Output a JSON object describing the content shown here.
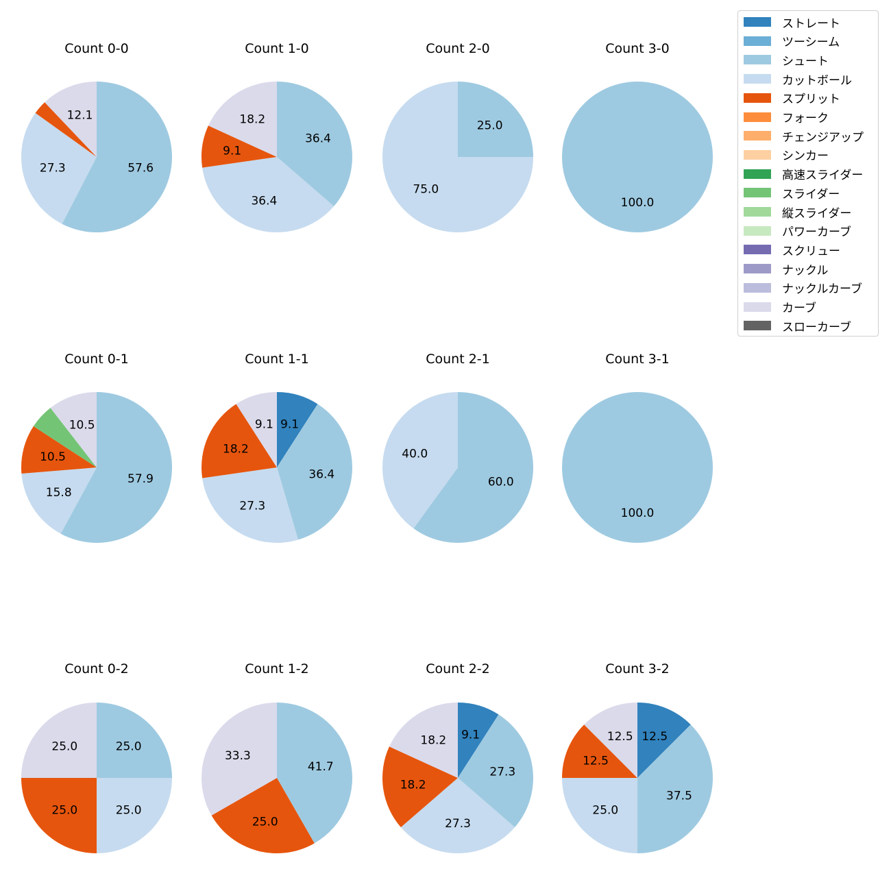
{
  "chart_data": {
    "type": "pie",
    "legend_placement": "top-right",
    "pitch_types": [
      {
        "name": "ストレート",
        "color": "#3182bd"
      },
      {
        "name": "ツーシーム",
        "color": "#6baed6"
      },
      {
        "name": "シュート",
        "color": "#9ecae1"
      },
      {
        "name": "カットボール",
        "color": "#c6dbef"
      },
      {
        "name": "スプリット",
        "color": "#e6550d"
      },
      {
        "name": "フォーク",
        "color": "#fd8d3c"
      },
      {
        "name": "チェンジアップ",
        "color": "#fdae6b"
      },
      {
        "name": "シンカー",
        "color": "#fdd0a2"
      },
      {
        "name": "高速スライダー",
        "color": "#31a354"
      },
      {
        "name": "スライダー",
        "color": "#74c476"
      },
      {
        "name": "縦スライダー",
        "color": "#a1d99b"
      },
      {
        "name": "パワーカーブ",
        "color": "#c7e9c0"
      },
      {
        "name": "スクリュー",
        "color": "#756bb1"
      },
      {
        "name": "ナックル",
        "color": "#9e9ac8"
      },
      {
        "name": "ナックルカーブ",
        "color": "#bcbddc"
      },
      {
        "name": "カーブ",
        "color": "#dadaeb"
      },
      {
        "name": "スローカーブ",
        "color": "#636363"
      }
    ],
    "charts": [
      {
        "title": "Count 0-0",
        "slices": [
          {
            "type": "シュート",
            "value": 57.6,
            "label": "57.6"
          },
          {
            "type": "カットボール",
            "value": 27.3,
            "label": "27.3"
          },
          {
            "type": "スプリット",
            "value": 3.0,
            "label": ""
          },
          {
            "type": "カーブ",
            "value": 12.1,
            "label": "12.1"
          }
        ]
      },
      {
        "title": "Count 1-0",
        "slices": [
          {
            "type": "シュート",
            "value": 36.4,
            "label": "36.4"
          },
          {
            "type": "カットボール",
            "value": 36.4,
            "label": "36.4"
          },
          {
            "type": "スプリット",
            "value": 9.1,
            "label": "9.1"
          },
          {
            "type": "カーブ",
            "value": 18.2,
            "label": "18.2"
          }
        ]
      },
      {
        "title": "Count 2-0",
        "slices": [
          {
            "type": "シュート",
            "value": 25.0,
            "label": "25.0"
          },
          {
            "type": "カットボール",
            "value": 75.0,
            "label": "75.0"
          }
        ]
      },
      {
        "title": "Count 3-0",
        "slices": [
          {
            "type": "シュート",
            "value": 100.0,
            "label": "100.0"
          }
        ]
      },
      {
        "title": "Count 0-1",
        "slices": [
          {
            "type": "シュート",
            "value": 57.9,
            "label": "57.9"
          },
          {
            "type": "カットボール",
            "value": 15.8,
            "label": "15.8"
          },
          {
            "type": "スプリット",
            "value": 10.5,
            "label": "10.5"
          },
          {
            "type": "スライダー",
            "value": 5.3,
            "label": ""
          },
          {
            "type": "カーブ",
            "value": 10.5,
            "label": "10.5"
          }
        ]
      },
      {
        "title": "Count 1-1",
        "slices": [
          {
            "type": "ストレート",
            "value": 9.1,
            "label": "9.1"
          },
          {
            "type": "シュート",
            "value": 36.4,
            "label": "36.4"
          },
          {
            "type": "カットボール",
            "value": 27.3,
            "label": "27.3"
          },
          {
            "type": "スプリット",
            "value": 18.2,
            "label": "18.2"
          },
          {
            "type": "カーブ",
            "value": 9.1,
            "label": "9.1"
          }
        ]
      },
      {
        "title": "Count 2-1",
        "slices": [
          {
            "type": "シュート",
            "value": 60.0,
            "label": "60.0"
          },
          {
            "type": "カットボール",
            "value": 40.0,
            "label": "40.0"
          }
        ]
      },
      {
        "title": "Count 3-1",
        "slices": [
          {
            "type": "シュート",
            "value": 100.0,
            "label": "100.0"
          }
        ]
      },
      {
        "title": "Count 0-2",
        "slices": [
          {
            "type": "シュート",
            "value": 25.0,
            "label": "25.0"
          },
          {
            "type": "カットボール",
            "value": 25.0,
            "label": "25.0"
          },
          {
            "type": "スプリット",
            "value": 25.0,
            "label": "25.0"
          },
          {
            "type": "カーブ",
            "value": 25.0,
            "label": "25.0"
          }
        ]
      },
      {
        "title": "Count 1-2",
        "slices": [
          {
            "type": "シュート",
            "value": 41.7,
            "label": "41.7"
          },
          {
            "type": "スプリット",
            "value": 25.0,
            "label": "25.0"
          },
          {
            "type": "カーブ",
            "value": 33.3,
            "label": "33.3"
          }
        ]
      },
      {
        "title": "Count 2-2",
        "slices": [
          {
            "type": "ストレート",
            "value": 9.1,
            "label": "9.1"
          },
          {
            "type": "シュート",
            "value": 27.3,
            "label": "27.3"
          },
          {
            "type": "カットボール",
            "value": 27.3,
            "label": "27.3"
          },
          {
            "type": "スプリット",
            "value": 18.2,
            "label": "18.2"
          },
          {
            "type": "カーブ",
            "value": 18.2,
            "label": "18.2"
          }
        ]
      },
      {
        "title": "Count 3-2",
        "slices": [
          {
            "type": "ストレート",
            "value": 12.5,
            "label": "12.5"
          },
          {
            "type": "シュート",
            "value": 37.5,
            "label": "37.5"
          },
          {
            "type": "カットボール",
            "value": 25.0,
            "label": "25.0"
          },
          {
            "type": "スプリット",
            "value": 12.5,
            "label": "12.5"
          },
          {
            "type": "カーブ",
            "value": 12.5,
            "label": "12.5"
          }
        ]
      }
    ]
  }
}
